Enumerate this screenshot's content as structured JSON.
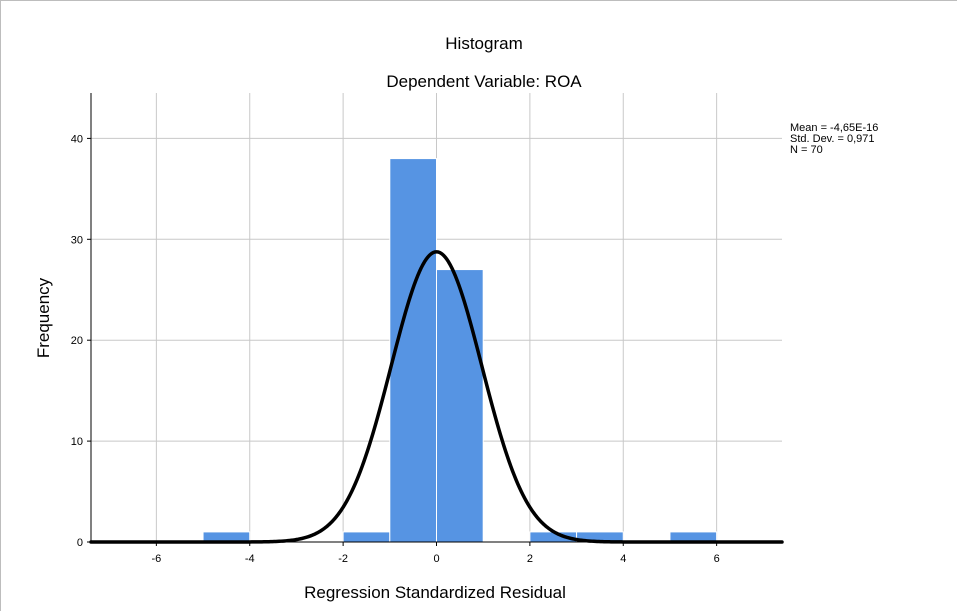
{
  "chart_data": {
    "type": "bar",
    "subtype": "histogram",
    "title": "Histogram",
    "subtitle": "Dependent Variable: ROA",
    "xlabel": "Regression Standardized Residual",
    "ylabel": "Frequency",
    "xlim": [
      -7.4,
      7.4
    ],
    "ylim": [
      0,
      44.5
    ],
    "x_ticks": [
      "-6",
      "-4",
      "-2",
      "0",
      "2",
      "4",
      "6"
    ],
    "x_tick_values": [
      -6,
      -4,
      -2,
      0,
      2,
      4,
      6
    ],
    "y_ticks": [
      "0",
      "10",
      "20",
      "30",
      "40"
    ],
    "y_tick_values": [
      0,
      10,
      20,
      30,
      40
    ],
    "grid": true,
    "bins": [
      {
        "from": -5,
        "to": -4,
        "count": 1
      },
      {
        "from": -2,
        "to": -1,
        "count": 1
      },
      {
        "from": -1,
        "to": 0,
        "count": 38
      },
      {
        "from": 0,
        "to": 1,
        "count": 27
      },
      {
        "from": 2,
        "to": 3,
        "count": 1
      },
      {
        "from": 3,
        "to": 4,
        "count": 1
      },
      {
        "from": 5,
        "to": 6,
        "count": 1
      }
    ],
    "normal_curve": {
      "mean": -4.65e-16,
      "std_dev": 0.971,
      "n": 70,
      "bin_width": 1
    },
    "stats_lines": [
      "Mean = -4,65E-16",
      "Std. Dev. = 0,971",
      "N = 70"
    ],
    "colors": {
      "bar_fill": "#5694e3",
      "bar_stroke": "#ffffff",
      "curve": "#000000",
      "grid": "#c8c8c8",
      "axis": "#000000"
    }
  }
}
